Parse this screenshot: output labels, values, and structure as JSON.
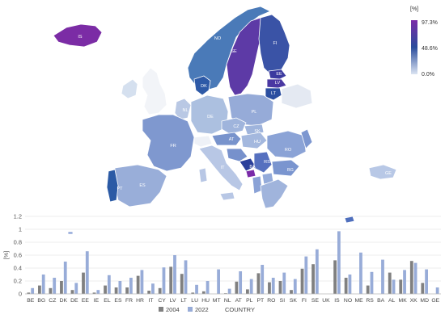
{
  "chart_data": [
    {
      "type": "map",
      "unit_label": "[%]",
      "colorbar": {
        "ticks": [
          "97.3%",
          "48.6%",
          "0.0%"
        ],
        "colors": {
          "high": "#7a2aa8",
          "mid": "#2a4c9c",
          "low": "#dbe4f2"
        }
      },
      "region_labels": [
        "IS",
        "NO",
        "SE",
        "FI",
        "EE",
        "LV",
        "LT",
        "DK",
        "NL",
        "DE",
        "PL",
        "CZ",
        "SK",
        "HU",
        "AT",
        "FR",
        "IT",
        "ES",
        "PT",
        "RO",
        "BG",
        "RS",
        "BA",
        "GE"
      ]
    },
    {
      "type": "bar",
      "title": "",
      "ylabel": "[%]",
      "xlabel": "COUNTRY",
      "ylim": [
        0,
        1.2
      ],
      "yticks": [
        "0",
        "0.2",
        "0.4",
        "0.6",
        "0.8",
        "1",
        "1.2"
      ],
      "grid": true,
      "legend_position": "bottom",
      "categories": [
        "BE",
        "BG",
        "CZ",
        "DK",
        "DE",
        "EE",
        "IE",
        "EL",
        "ES",
        "FR",
        "HR",
        "IT",
        "CY",
        "LV",
        "LT",
        "LU",
        "HU",
        "MT",
        "NL",
        "AT",
        "PL",
        "PT",
        "RO",
        "SI",
        "SK",
        "FI",
        "SE",
        "UK",
        "IS",
        "NO",
        "ME",
        "RS",
        "BA",
        "AL",
        "MK",
        "XK",
        "MD",
        "GE"
      ],
      "series": [
        {
          "name": "2004",
          "color": "#808080",
          "values": [
            0.02,
            0.13,
            0.09,
            0.2,
            0.06,
            0.33,
            0.02,
            0.13,
            0.1,
            0.1,
            0.28,
            0.05,
            0.09,
            0.42,
            0.31,
            0.02,
            0.04,
            0.0,
            0.01,
            0.19,
            0.07,
            0.32,
            0.18,
            0.2,
            0.06,
            0.39,
            0.46,
            0.0,
            0.52,
            0.25,
            0.0,
            0.13,
            0.0,
            0.33,
            0.22,
            0.51,
            0.17,
            0.0
          ]
        },
        {
          "name": "2022",
          "color": "#98acd8",
          "values": [
            0.09,
            0.3,
            0.25,
            0.5,
            0.17,
            0.66,
            0.06,
            0.29,
            0.2,
            0.25,
            0.37,
            0.16,
            0.41,
            0.6,
            0.52,
            0.14,
            0.2,
            0.38,
            0.08,
            0.35,
            0.23,
            0.45,
            0.25,
            0.33,
            0.23,
            0.58,
            0.69,
            0.0,
            0.97,
            0.3,
            0.64,
            0.34,
            0.53,
            0.22,
            0.37,
            0.48,
            0.38,
            0.1
          ]
        }
      ]
    }
  ]
}
